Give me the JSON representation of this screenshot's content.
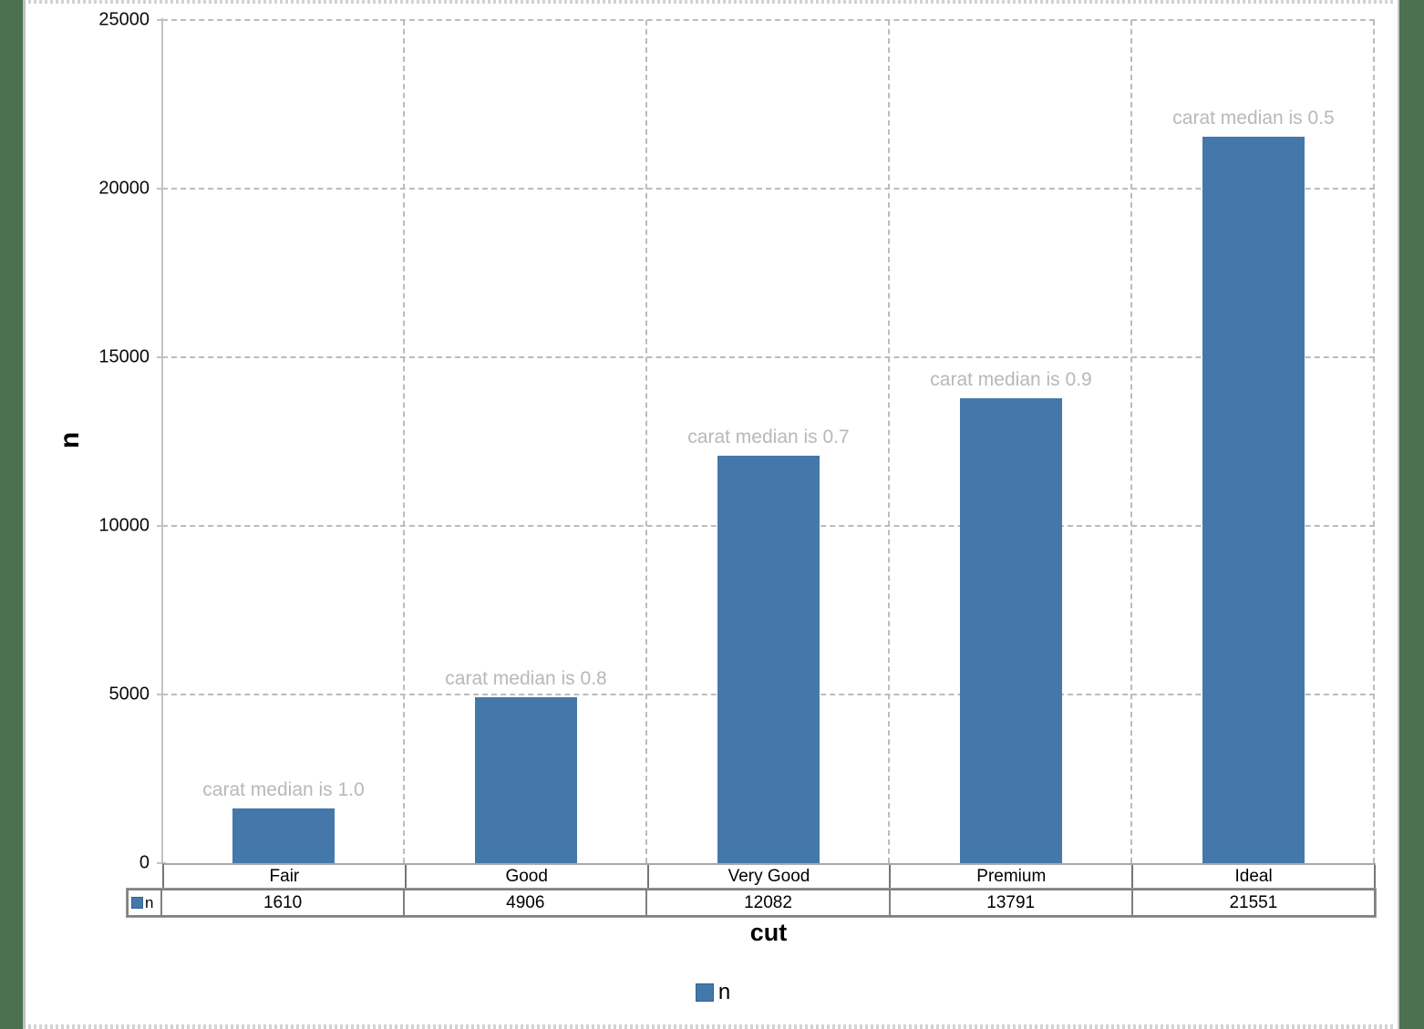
{
  "window": {
    "frame_color": "#4a7150",
    "background_color": "#ffffff",
    "dotted_border_color": "#d2d2d2"
  },
  "chart_data": {
    "type": "bar",
    "title": "",
    "categories": [
      "Fair",
      "Good",
      "Very Good",
      "Premium",
      "Ideal"
    ],
    "series": [
      {
        "name": "n",
        "values": [
          1610,
          4906,
          12082,
          13791,
          21551
        ],
        "color": "#4478ab"
      }
    ],
    "annotations": [
      "carat median is 1.0",
      "carat median is 0.8",
      "carat median is 0.7",
      "carat median is 0.9",
      "carat median is 0.5"
    ],
    "xlabel": "cut",
    "ylabel": "n",
    "ylim": [
      0,
      25000
    ],
    "yticks": [
      0,
      5000,
      10000,
      15000,
      20000,
      25000
    ],
    "grid": "dashed horizontal and vertical gridlines",
    "legend_position": "bottom",
    "legend_label": "n",
    "data_table": {
      "row_header": "n",
      "values": [
        "1610",
        "4906",
        "12082",
        "13791",
        "21551"
      ]
    },
    "annotation_color": "#b8b8b8"
  }
}
